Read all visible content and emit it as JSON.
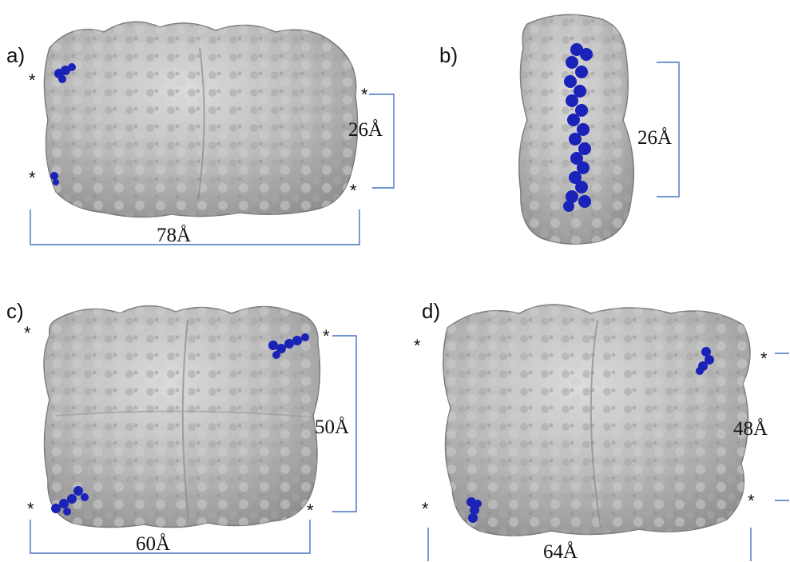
{
  "colors": {
    "protein_surface": "#b9b9b9",
    "protein_shadow": "#8e8e8e",
    "marker_residue": "#1a22b8",
    "bracket": "#4472c4"
  },
  "star_symbol": "*",
  "panels": [
    {
      "label": "a)",
      "dimensions": [
        "26Å",
        "78Å"
      ]
    },
    {
      "label": "b)",
      "dimensions": [
        "26Å"
      ]
    },
    {
      "label": "c)",
      "dimensions": [
        "50Å",
        "60Å"
      ]
    },
    {
      "label": "d)",
      "dimensions": [
        "48Å",
        "64Å"
      ]
    }
  ]
}
